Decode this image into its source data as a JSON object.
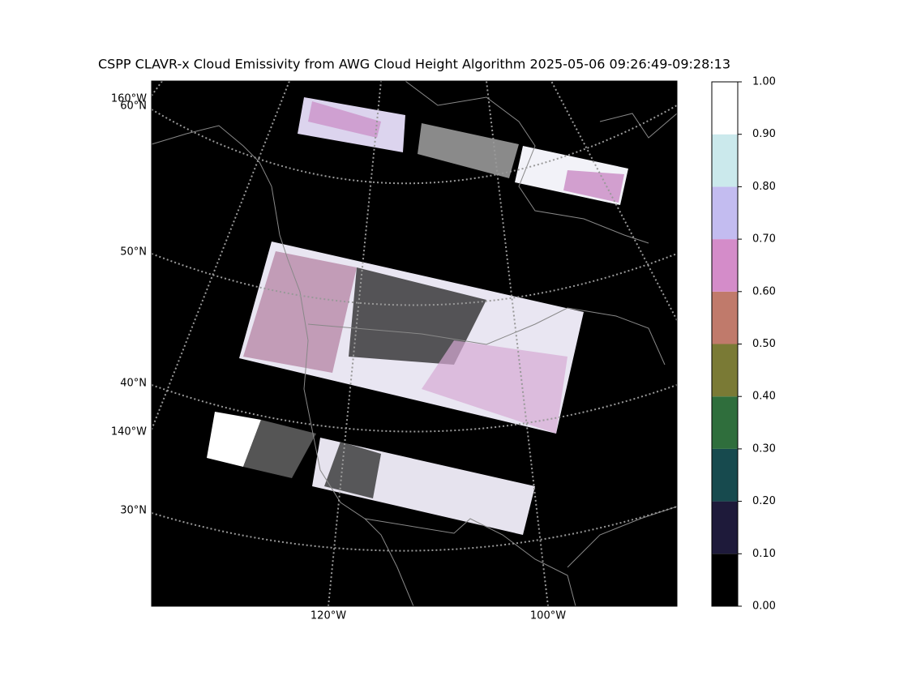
{
  "title": "CSPP CLAVR-x Cloud Emissivity from AWG Cloud Height Algorithm 2025-05-06 09:26:49-09:28:13",
  "map": {
    "lat_labels": [
      "60°N",
      "50°N",
      "40°N",
      "30°N"
    ],
    "lon_labels": [
      "160°W",
      "140°W",
      "120°W",
      "100°W"
    ]
  },
  "colorbar": {
    "ticks": [
      {
        "value": 0,
        "label": "0.00"
      },
      {
        "value": 0.1,
        "label": "0.10"
      },
      {
        "value": 0.2,
        "label": "0.20"
      },
      {
        "value": 0.3,
        "label": "0.30"
      },
      {
        "value": 0.4,
        "label": "0.40"
      },
      {
        "value": 0.5,
        "label": "0.50"
      },
      {
        "value": 0.6,
        "label": "0.60"
      },
      {
        "value": 0.7,
        "label": "0.70"
      },
      {
        "value": 0.8,
        "label": "0.80"
      },
      {
        "value": 0.9,
        "label": "0.90"
      },
      {
        "value": 1,
        "label": "1.00"
      }
    ],
    "colors": [
      "#000000",
      "#1e1a3a",
      "#174a4e",
      "#2f6e3c",
      "#7a7a35",
      "#c07a6b",
      "#d48cc9",
      "#c3bcf0",
      "#cbe9ec",
      "#ffffff"
    ]
  }
}
